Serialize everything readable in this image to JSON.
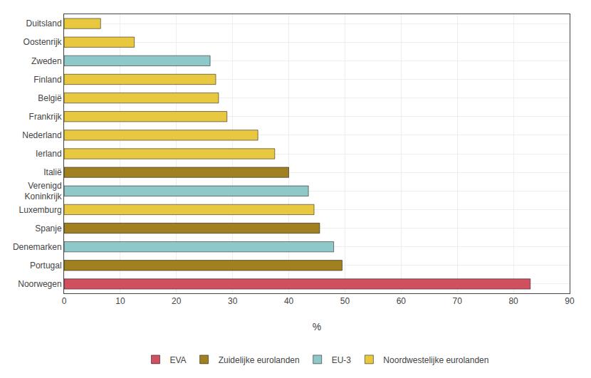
{
  "chart_data": {
    "type": "bar",
    "orientation": "horizontal",
    "categories": [
      "Duitsland",
      "Oostenrijk",
      "Zweden",
      "Finland",
      "België",
      "Frankrijk",
      "Nederland",
      "Ierland",
      "Italië",
      "Verenigd\nKoninkrijk",
      "Luxemburg",
      "Spanje",
      "Denemarken",
      "Portugal",
      "Noorwegen"
    ],
    "series": [
      {
        "name": "EVA",
        "color": "#D05060",
        "values": [
          null,
          null,
          null,
          null,
          null,
          null,
          null,
          null,
          null,
          null,
          null,
          null,
          null,
          null,
          83.0
        ]
      },
      {
        "name": "Zuidelijke eurolanden",
        "color": "#A08020",
        "values": [
          null,
          null,
          null,
          null,
          null,
          null,
          null,
          null,
          40.0,
          null,
          null,
          45.5,
          null,
          49.5,
          null
        ]
      },
      {
        "name": "EU-3",
        "color": "#8EC8C8",
        "values": [
          null,
          null,
          26.0,
          null,
          null,
          null,
          null,
          null,
          null,
          43.5,
          null,
          null,
          48.0,
          null,
          null
        ]
      },
      {
        "name": "Noordwestelijke eurolanden",
        "color": "#E8C840",
        "values": [
          6.5,
          12.5,
          null,
          27.0,
          27.5,
          29.0,
          34.5,
          37.5,
          null,
          null,
          44.5,
          null,
          null,
          null,
          null
        ]
      }
    ],
    "xlabel": "%",
    "xlim": [
      0,
      90
    ],
    "xticks": [
      0,
      10,
      20,
      30,
      40,
      50,
      60,
      70,
      80,
      90
    ],
    "grid": true,
    "legend": "bottom"
  }
}
